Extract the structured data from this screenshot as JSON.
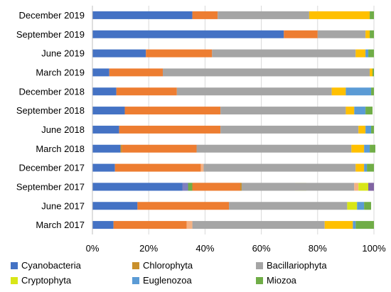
{
  "chart_data": {
    "type": "bar",
    "orientation": "horizontal",
    "stacked": "percent",
    "categories": [
      "December 2019",
      "September 2019",
      "June 2019",
      "March 2019",
      "December 2018",
      "September 2018",
      "June 2018",
      "March 2018",
      "December 2017",
      "September 2017",
      "June 2017",
      "March 2017"
    ],
    "series": [
      {
        "name": "Cyanobacteria",
        "color": "#4472C4",
        "values": [
          35.5,
          68,
          19,
          6,
          8.5,
          11.5,
          9.5,
          10,
          8,
          32,
          16,
          7.5
        ]
      },
      {
        "name": "",
        "color": "#ED7D31",
        "values": [
          9,
          12,
          23.5,
          19,
          21.5,
          34,
          36,
          0,
          0,
          0,
          32.5,
          0
        ]
      },
      {
        "name": "Chlorophyta",
        "color": "#C9902C",
        "values": [
          0,
          0,
          0,
          0,
          0,
          0,
          0,
          0.5,
          0,
          0,
          0,
          0
        ]
      },
      {
        "name": "",
        "color": "#ED7D31",
        "values": [
          0,
          0,
          0,
          0,
          0,
          0,
          0,
          26.5,
          30.5,
          0,
          0,
          26
        ]
      },
      {
        "name": "",
        "color": "#F4B183",
        "values": [
          0,
          0,
          0,
          0,
          0,
          0,
          0,
          0,
          1,
          0,
          0,
          2
        ]
      },
      {
        "name": "Bacillariophyta",
        "color": "#A5A5A5",
        "values": [
          32.5,
          17,
          51,
          73.5,
          55,
          44.5,
          49,
          55,
          54,
          40,
          42,
          47
        ]
      },
      {
        "name": "",
        "color": "#FFC000",
        "values": [
          21.5,
          1.5,
          3.5,
          1,
          5,
          3,
          2.5,
          4.5,
          3,
          0,
          0,
          10
        ]
      },
      {
        "name": "Cryptophyta",
        "color": "#D8E618",
        "values": [
          0,
          0,
          0,
          0,
          0,
          0,
          0,
          0,
          0,
          4,
          3.5,
          0
        ]
      },
      {
        "name": "Euglenozoa",
        "color": "#5B9BD5",
        "values": [
          0,
          0,
          1,
          0,
          9,
          4,
          2,
          2,
          1,
          0,
          2.5,
          1
        ]
      },
      {
        "name": "Miozoa",
        "color": "#70AD47",
        "values": [
          1.5,
          1.5,
          2,
          0.5,
          1,
          2.5,
          1,
          2,
          2.5,
          0,
          2.5,
          6.5
        ]
      }
    ],
    "extra_segments": [
      {
        "row": 9,
        "color": "#7F7FBF",
        "start": 32,
        "width": 2
      },
      {
        "row": 9,
        "color": "#70AD47",
        "start": 34,
        "width": 1.5
      },
      {
        "row": 9,
        "color": "#ED7D31",
        "start": 35.5,
        "width": 17
      },
      {
        "row": 9,
        "color": "#C9902C",
        "start": 52.5,
        "width": 0.5
      },
      {
        "row": 9,
        "color": "#8064A2",
        "start": 98,
        "width": 2
      }
    ],
    "xlim": [
      0,
      100
    ],
    "xticks": [
      "0%",
      "20%",
      "40%",
      "60%",
      "80%",
      "100%"
    ],
    "grid": "vertical",
    "legend_position": "bottom",
    "legend": [
      {
        "label": "Cyanobacteria",
        "color": "#4472C4"
      },
      {
        "label": "Chlorophyta",
        "color": "#C9902C"
      },
      {
        "label": "Bacillariophyta",
        "color": "#A5A5A5"
      },
      {
        "label": "Cryptophyta",
        "color": "#D8E618"
      },
      {
        "label": "Euglenozoa",
        "color": "#5B9BD5"
      },
      {
        "label": "Miozoa",
        "color": "#70AD47"
      }
    ]
  }
}
